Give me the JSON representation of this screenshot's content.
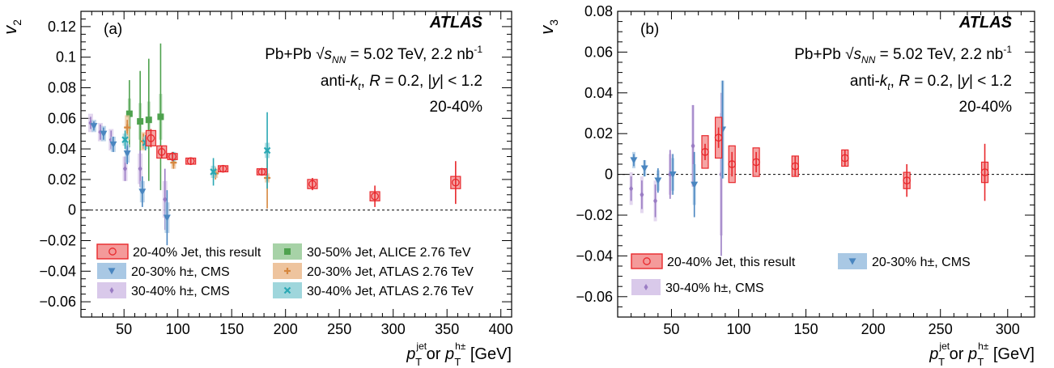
{
  "colors": {
    "this_result": "#e8282c",
    "this_result_fill": "#f49a9a",
    "cms_20_30": "#4a86c0",
    "cms_20_30_fill": "#a9c8e4",
    "cms_30_40": "#9a7cc4",
    "cms_30_40_fill": "#d9c9ea",
    "alice": "#4ea24e",
    "alice_fill": "#a7d2a7",
    "atlas276_20_30": "#d6873e",
    "atlas276_20_30_fill": "#eec49e",
    "atlas276_30_40": "#2aa8b4",
    "atlas276_30_40_fill": "#9fd6dc"
  },
  "chart_data": [
    {
      "type": "scatter",
      "panel_label": "(a)",
      "experiment": "ATLAS",
      "info_lines": [
        {
          "pre": "Pb+Pb ",
          "sqrt": "s",
          "sqrt_sub": "NN",
          "post": " = 5.02 TeV, 2.2 nb",
          "post_sup": "-1"
        },
        {
          "pre": "anti-",
          "k": "k",
          "k_sub": "t",
          "r_text": ", ",
          "R": "R",
          "R_text": " = 0.2, |",
          "y": "y",
          "y_text": "| < 1.2"
        },
        {
          "plain": "20-40%"
        }
      ],
      "ylabel_main": "v",
      "ylabel_sub": "2",
      "xlabel": {
        "p": "p",
        "sup1": "jet",
        "sub": "T",
        "mid": " or ",
        "sup2": "h±",
        "end": " [GeV]"
      },
      "xlim": [
        10,
        410
      ],
      "ylim": [
        -0.07,
        0.13
      ],
      "xticks": [
        50,
        100,
        150,
        200,
        250,
        300,
        350,
        400
      ],
      "yticks": [
        -0.06,
        -0.04,
        -0.02,
        0,
        0.02,
        0.04,
        0.06,
        0.08,
        0.1,
        0.12
      ],
      "ytick_labels": [
        "−0.06",
        "−0.04",
        "−0.02",
        "0",
        "0.02",
        "0.04",
        "0.06",
        "0.08",
        "0.1",
        "0.12"
      ],
      "zero_line": true,
      "legend": [
        {
          "label": "20-40% Jet, this result",
          "series": "this_result"
        },
        {
          "label": "30-50% Jet, ALICE 2.76 TeV",
          "series": "alice"
        },
        {
          "label": "20-30% h±, CMS",
          "series": "cms_20_30"
        },
        {
          "label": "20-30% Jet, ATLAS 2.76 TeV",
          "series": "atlas276_20_30"
        },
        {
          "label": "30-40% h±, CMS",
          "series": "cms_30_40"
        },
        {
          "label": "30-40% Jet, ATLAS 2.76 TeV",
          "series": "atlas276_30_40"
        }
      ],
      "series": [
        {
          "name": "20-40% Jet, this result",
          "key": "this_result",
          "marker": "circle",
          "points": [
            {
              "x": 75,
              "y": 0.047,
              "stat": 0.006,
              "sys": 0.005,
              "w": 6
            },
            {
              "x": 85,
              "y": 0.038,
              "stat": 0.004,
              "sys": 0.004,
              "w": 6
            },
            {
              "x": 95,
              "y": 0.035,
              "stat": 0.003,
              "sys": 0.002,
              "w": 6
            },
            {
              "x": 112,
              "y": 0.032,
              "stat": 0.002,
              "sys": 0.002,
              "w": 6
            },
            {
              "x": 142,
              "y": 0.027,
              "stat": 0.002,
              "sys": 0.002,
              "w": 6
            },
            {
              "x": 178,
              "y": 0.025,
              "stat": 0.002,
              "sys": 0.002,
              "w": 6
            },
            {
              "x": 225,
              "y": 0.017,
              "stat": 0.004,
              "sys": 0.003,
              "w": 6
            },
            {
              "x": 283,
              "y": 0.009,
              "stat": 0.007,
              "sys": 0.003,
              "w": 6
            },
            {
              "x": 358,
              "y": 0.018,
              "stat": 0.014,
              "sys": 0.004,
              "w": 6
            }
          ]
        },
        {
          "name": "20-30% h±, CMS",
          "key": "cms_20_30",
          "marker": "triangle",
          "points": [
            {
              "x": 22,
              "y": 0.055,
              "stat": 0.003,
              "sys": 0.004,
              "w": 3
            },
            {
              "x": 31,
              "y": 0.05,
              "stat": 0.004,
              "sys": 0.005,
              "w": 3
            },
            {
              "x": 40,
              "y": 0.043,
              "stat": 0.005,
              "sys": 0.005,
              "w": 3
            },
            {
              "x": 53,
              "y": 0.037,
              "stat": 0.007,
              "sys": 0.006,
              "w": 3
            },
            {
              "x": 67,
              "y": 0.012,
              "stat": 0.01,
              "sys": 0.007,
              "w": 3
            },
            {
              "x": 90,
              "y": -0.005,
              "stat": 0.018,
              "sys": 0.01,
              "w": 3
            }
          ]
        },
        {
          "name": "30-40% h±, CMS",
          "key": "cms_30_40",
          "marker": "diamond",
          "points": [
            {
              "x": 19,
              "y": 0.057,
              "stat": 0.004,
              "sys": 0.006,
              "w": 3
            },
            {
              "x": 28,
              "y": 0.051,
              "stat": 0.005,
              "sys": 0.006,
              "w": 3
            },
            {
              "x": 38,
              "y": 0.046,
              "stat": 0.006,
              "sys": 0.007,
              "w": 3
            },
            {
              "x": 51,
              "y": 0.027,
              "stat": 0.008,
              "sys": 0.008,
              "w": 3
            },
            {
              "x": 65,
              "y": 0.027,
              "stat": 0.012,
              "sys": 0.01,
              "w": 3
            },
            {
              "x": 88,
              "y": 0.007,
              "stat": 0.02,
              "sys": 0.012,
              "w": 3
            }
          ]
        },
        {
          "name": "30-50% Jet, ALICE 2.76 TeV",
          "key": "alice",
          "marker": "square",
          "points": [
            {
              "x": 55,
              "y": 0.063,
              "stat": 0.022,
              "sys": 0.01,
              "w": 2
            },
            {
              "x": 65,
              "y": 0.058,
              "stat": 0.033,
              "sys": 0.012,
              "w": 2
            },
            {
              "x": 73,
              "y": 0.059,
              "stat": 0.04,
              "sys": 0.012,
              "w": 2
            },
            {
              "x": 84,
              "y": 0.061,
              "stat": 0.048,
              "sys": 0.015,
              "w": 2
            }
          ]
        },
        {
          "name": "20-30% Jet, ATLAS 2.76 TeV",
          "key": "atlas276_20_30",
          "marker": "plus",
          "points": [
            {
              "x": 53,
              "y": 0.054,
              "stat": 0.005,
              "sys": 0.008,
              "w": 3
            },
            {
              "x": 68,
              "y": 0.045,
              "stat": 0.005,
              "sys": 0.006,
              "w": 3
            },
            {
              "x": 96,
              "y": 0.031,
              "stat": 0.004,
              "sys": 0.004,
              "w": 3
            },
            {
              "x": 135,
              "y": 0.024,
              "stat": 0.004,
              "sys": 0.003,
              "w": 3
            },
            {
              "x": 183,
              "y": 0.021,
              "stat": 0.02,
              "sys": 0.003,
              "w": 3
            }
          ]
        },
        {
          "name": "30-40% Jet, ATLAS 2.76 TeV",
          "key": "atlas276_30_40",
          "marker": "cross",
          "points": [
            {
              "x": 51,
              "y": 0.046,
              "stat": 0.006,
              "sys": 0.004,
              "w": 3
            },
            {
              "x": 70,
              "y": 0.044,
              "stat": 0.005,
              "sys": 0.004,
              "w": 3
            },
            {
              "x": 96,
              "y": 0.035,
              "stat": 0.003,
              "sys": 0.003,
              "w": 3
            },
            {
              "x": 133,
              "y": 0.025,
              "stat": 0.009,
              "sys": 0.004,
              "w": 3
            },
            {
              "x": 183,
              "y": 0.039,
              "stat": 0.025,
              "sys": 0.005,
              "w": 3
            }
          ]
        }
      ]
    },
    {
      "type": "scatter",
      "panel_label": "(b)",
      "experiment": "ATLAS",
      "info_lines": [
        {
          "pre": "Pb+Pb ",
          "sqrt": "s",
          "sqrt_sub": "NN",
          "post": " = 5.02 TeV, 2.2 nb",
          "post_sup": "-1"
        },
        {
          "pre": "anti-",
          "k": "k",
          "k_sub": "t",
          "r_text": ", ",
          "R": "R",
          "R_text": " = 0.2, |",
          "y": "y",
          "y_text": "| < 1.2"
        },
        {
          "plain": "20-40%"
        }
      ],
      "ylabel_main": "v",
      "ylabel_sub": "3",
      "xlabel": {
        "p": "p",
        "sup1": "jet",
        "sub": "T",
        "mid": " or ",
        "sup2": "h±",
        "end": " [GeV]"
      },
      "xlim": [
        10,
        320
      ],
      "ylim": [
        -0.07,
        0.08
      ],
      "xticks": [
        50,
        100,
        150,
        200,
        250,
        300
      ],
      "yticks": [
        -0.06,
        -0.04,
        -0.02,
        0,
        0.02,
        0.04,
        0.06,
        0.08
      ],
      "ytick_labels": [
        "−0.06",
        "−0.04",
        "−0.02",
        "0",
        "0.02",
        "0.04",
        "0.06",
        "0.08"
      ],
      "zero_line": true,
      "legend": [
        {
          "label": "20-40% Jet, this result",
          "series": "this_result"
        },
        {
          "label": "20-30% h±, CMS",
          "series": "cms_20_30"
        },
        {
          "label": "30-40% h±, CMS",
          "series": "cms_30_40"
        }
      ],
      "series": [
        {
          "name": "20-40% Jet, this result",
          "key": "this_result",
          "marker": "circle",
          "points": [
            {
              "x": 75,
              "y": 0.011,
              "stat": 0.004,
              "sys": 0.008,
              "w": 4
            },
            {
              "x": 85,
              "y": 0.018,
              "stat": 0.005,
              "sys": 0.01,
              "w": 4
            },
            {
              "x": 95,
              "y": 0.005,
              "stat": 0.006,
              "sys": 0.009,
              "w": 4
            },
            {
              "x": 113,
              "y": 0.006,
              "stat": 0.005,
              "sys": 0.007,
              "w": 4
            },
            {
              "x": 142,
              "y": 0.004,
              "stat": 0.005,
              "sys": 0.005,
              "w": 4
            },
            {
              "x": 179,
              "y": 0.008,
              "stat": 0.004,
              "sys": 0.004,
              "w": 4
            },
            {
              "x": 225,
              "y": -0.003,
              "stat": 0.008,
              "sys": 0.004,
              "w": 4
            },
            {
              "x": 283,
              "y": 0.001,
              "stat": 0.014,
              "sys": 0.005,
              "w": 4
            }
          ]
        },
        {
          "name": "20-30% h±, CMS",
          "key": "cms_20_30",
          "marker": "triangle",
          "points": [
            {
              "x": 22,
              "y": 0.007,
              "stat": 0.003,
              "sys": 0.004,
              "w": 2
            },
            {
              "x": 30,
              "y": 0.003,
              "stat": 0.004,
              "sys": 0.004,
              "w": 2
            },
            {
              "x": 40,
              "y": -0.003,
              "stat": 0.006,
              "sys": 0.005,
              "w": 2
            },
            {
              "x": 51,
              "y": 0.0,
              "stat": 0.01,
              "sys": 0.008,
              "w": 2
            },
            {
              "x": 67,
              "y": -0.005,
              "stat": 0.016,
              "sys": 0.01,
              "w": 2
            },
            {
              "x": 88,
              "y": 0.022,
              "stat": 0.024,
              "sys": 0.024,
              "w": 2
            }
          ]
        },
        {
          "name": "30-40% h±, CMS",
          "key": "cms_30_40",
          "marker": "diamond",
          "points": [
            {
              "x": 20,
              "y": -0.007,
              "stat": 0.006,
              "sys": 0.008,
              "w": 2
            },
            {
              "x": 28,
              "y": -0.01,
              "stat": 0.007,
              "sys": 0.009,
              "w": 2
            },
            {
              "x": 38,
              "y": -0.013,
              "stat": 0.008,
              "sys": 0.01,
              "w": 2
            },
            {
              "x": 49,
              "y": 0.0,
              "stat": 0.012,
              "sys": 0.01,
              "w": 2
            },
            {
              "x": 66,
              "y": 0.014,
              "stat": 0.02,
              "sys": 0.02,
              "w": 2
            },
            {
              "x": 87,
              "y": 0.0,
              "stat": 0.04,
              "sys": 0.03,
              "w": 2
            }
          ]
        }
      ]
    }
  ]
}
